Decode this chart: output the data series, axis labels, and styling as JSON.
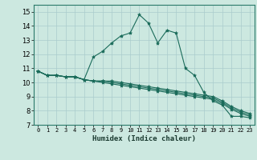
{
  "xlabel": "Humidex (Indice chaleur)",
  "background_color": "#cce8e0",
  "grid_color": "#aacccc",
  "line_color": "#1a6b5a",
  "xlim": [
    -0.5,
    23.5
  ],
  "ylim": [
    7,
    15.5
  ],
  "yticks": [
    7,
    8,
    9,
    10,
    11,
    12,
    13,
    14,
    15
  ],
  "xticks": [
    0,
    1,
    2,
    3,
    4,
    5,
    6,
    7,
    8,
    9,
    10,
    11,
    12,
    13,
    14,
    15,
    16,
    17,
    18,
    19,
    20,
    21,
    22,
    23
  ],
  "xtick_labels": [
    "0",
    "1",
    "2",
    "3",
    "4",
    "5",
    "6",
    "7",
    "8",
    "9",
    "10",
    "11",
    "12",
    "13",
    "14",
    "15",
    "16",
    "17",
    "18",
    "19",
    "20",
    "21",
    "22",
    "23"
  ],
  "series": [
    [
      10.8,
      10.5,
      10.5,
      10.4,
      10.4,
      10.2,
      11.8,
      12.2,
      12.8,
      13.3,
      13.5,
      14.8,
      14.2,
      12.8,
      13.7,
      13.5,
      11.0,
      10.5,
      9.3,
      8.7,
      8.4,
      7.6,
      7.6,
      7.5
    ],
    [
      10.8,
      10.5,
      10.5,
      10.4,
      10.4,
      10.2,
      10.1,
      10.1,
      10.1,
      10.0,
      9.9,
      9.8,
      9.7,
      9.6,
      9.5,
      9.4,
      9.3,
      9.2,
      9.1,
      9.0,
      8.7,
      8.3,
      8.0,
      7.8
    ],
    [
      10.8,
      10.5,
      10.5,
      10.4,
      10.4,
      10.2,
      10.1,
      10.1,
      10.0,
      9.9,
      9.8,
      9.7,
      9.6,
      9.5,
      9.4,
      9.3,
      9.2,
      9.1,
      9.0,
      8.9,
      8.6,
      8.2,
      7.9,
      7.7
    ],
    [
      10.8,
      10.5,
      10.5,
      10.4,
      10.4,
      10.2,
      10.1,
      10.0,
      9.9,
      9.8,
      9.7,
      9.6,
      9.5,
      9.4,
      9.3,
      9.2,
      9.1,
      9.0,
      8.9,
      8.8,
      8.5,
      8.1,
      7.8,
      7.6
    ]
  ]
}
